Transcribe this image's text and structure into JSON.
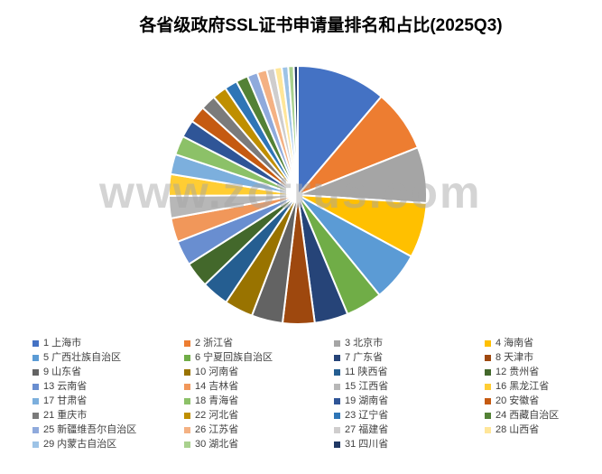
{
  "title": "各省级政府SSL证书申请量排名和占比(2025Q3)",
  "watermark": "www.zotrus.com",
  "chart_data": {
    "type": "pie",
    "title": "各省级政府SSL证书申请量排名和占比(2025Q3)",
    "legend_position": "bottom",
    "legend_columns": 4,
    "start_angle_deg": 0,
    "direction": "clockwise",
    "background": "#ffffff",
    "separator_color": "#ffffff",
    "watermark_text": "www.zotrus.com",
    "series": [
      {
        "rank": 1,
        "name": "上海市",
        "share_pct": 11.2,
        "color": "#4472C4"
      },
      {
        "rank": 2,
        "name": "浙江省",
        "share_pct": 7.8,
        "color": "#ED7D31"
      },
      {
        "rank": 3,
        "name": "北京市",
        "share_pct": 7.0,
        "color": "#A5A5A5"
      },
      {
        "rank": 4,
        "name": "海南省",
        "share_pct": 6.9,
        "color": "#FFC000"
      },
      {
        "rank": 5,
        "name": "广西壮族自治区",
        "share_pct": 6.2,
        "color": "#5B9BD5"
      },
      {
        "rank": 6,
        "name": "宁夏回族自治区",
        "share_pct": 4.6,
        "color": "#70AD47"
      },
      {
        "rank": 7,
        "name": "广东省",
        "share_pct": 4.2,
        "color": "#264478"
      },
      {
        "rank": 8,
        "name": "天津市",
        "share_pct": 4.0,
        "color": "#9E480E"
      },
      {
        "rank": 9,
        "name": "山东省",
        "share_pct": 3.9,
        "color": "#636363"
      },
      {
        "rank": 10,
        "name": "河南省",
        "share_pct": 3.6,
        "color": "#997300"
      },
      {
        "rank": 11,
        "name": "陕西省",
        "share_pct": 3.4,
        "color": "#255E91"
      },
      {
        "rank": 12,
        "name": "贵州省",
        "share_pct": 3.2,
        "color": "#43682B"
      },
      {
        "rank": 13,
        "name": "云南省",
        "share_pct": 3.1,
        "color": "#698ED0"
      },
      {
        "rank": 14,
        "name": "吉林省",
        "share_pct": 3.0,
        "color": "#F1975A"
      },
      {
        "rank": 15,
        "name": "江西省",
        "share_pct": 2.8,
        "color": "#B7B7B7"
      },
      {
        "rank": 16,
        "name": "黑龙江省",
        "share_pct": 2.7,
        "color": "#FFCD33"
      },
      {
        "rank": 17,
        "name": "甘肃省",
        "share_pct": 2.5,
        "color": "#7CAFDD"
      },
      {
        "rank": 18,
        "name": "青海省",
        "share_pct": 2.4,
        "color": "#8CC168"
      },
      {
        "rank": 19,
        "name": "湖南省",
        "share_pct": 2.2,
        "color": "#2F5597"
      },
      {
        "rank": 20,
        "name": "安徽省",
        "share_pct": 2.1,
        "color": "#C55A11"
      },
      {
        "rank": 21,
        "name": "重庆市",
        "share_pct": 1.9,
        "color": "#7B7B7B"
      },
      {
        "rank": 22,
        "name": "河北省",
        "share_pct": 1.8,
        "color": "#BF8F00"
      },
      {
        "rank": 23,
        "name": "辽宁省",
        "share_pct": 1.6,
        "color": "#2E75B6"
      },
      {
        "rank": 24,
        "name": "西藏自治区",
        "share_pct": 1.5,
        "color": "#538135"
      },
      {
        "rank": 25,
        "name": "新疆维吾尔自治区",
        "share_pct": 1.3,
        "color": "#8FAADC"
      },
      {
        "rank": 26,
        "name": "江苏省",
        "share_pct": 1.2,
        "color": "#F4B183"
      },
      {
        "rank": 27,
        "name": "福建省",
        "share_pct": 1.0,
        "color": "#CFCDCD"
      },
      {
        "rank": 28,
        "name": "山西省",
        "share_pct": 0.9,
        "color": "#FFE699"
      },
      {
        "rank": 29,
        "name": "内蒙古自治区",
        "share_pct": 0.8,
        "color": "#9DC3E6"
      },
      {
        "rank": 30,
        "name": "湖北省",
        "share_pct": 0.7,
        "color": "#A9D18E"
      },
      {
        "rank": 31,
        "name": "四川省",
        "share_pct": 0.5,
        "color": "#203864"
      }
    ]
  }
}
